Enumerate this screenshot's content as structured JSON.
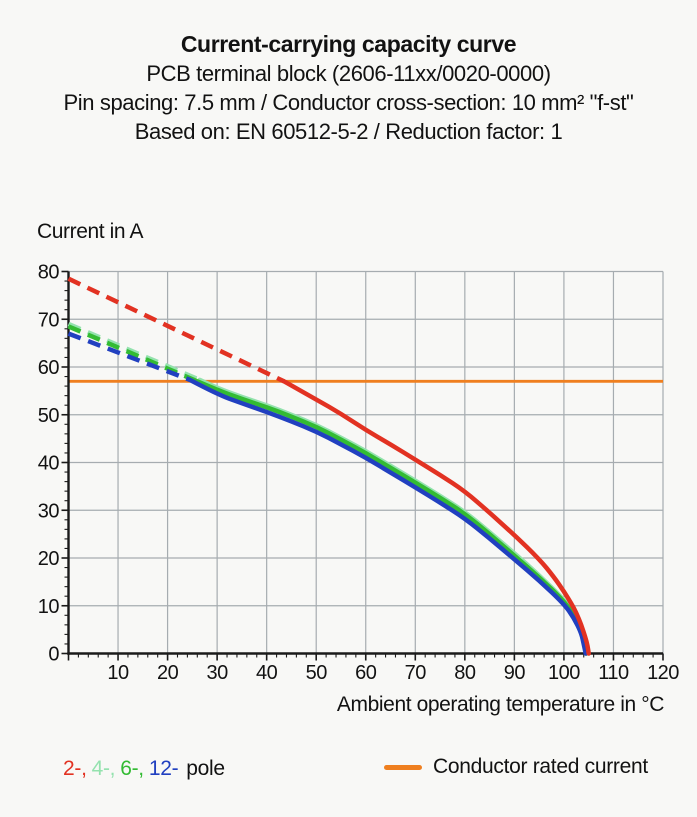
{
  "chart_data": {
    "type": "line",
    "title": "Current-carrying capacity curve",
    "subtitles": [
      "PCB terminal block (2606-11xx/0020-0000)",
      "Pin spacing: 7.5 mm / Conductor cross-section: 10 mm² \"f-st\"",
      "Based on: EN 60512-5-2 / Reduction factor: 1"
    ],
    "ylabel": "Current in A",
    "xlabel": "Ambient operating temperature in °C",
    "xlim": [
      0,
      120
    ],
    "ylim": [
      0,
      80
    ],
    "xticks": [
      10,
      20,
      30,
      40,
      50,
      60,
      70,
      80,
      90,
      100,
      110,
      120
    ],
    "yticks": [
      0,
      10,
      20,
      30,
      40,
      50,
      60,
      70,
      80
    ],
    "minor_tick_step": 2,
    "grid": true,
    "legend_position": "bottom",
    "rated_current_A": 57,
    "colors": {
      "grid": "#a6acb0",
      "axis": "#1a1a1a",
      "text": "#111111",
      "rated": "#ef7f1f"
    },
    "series": [
      {
        "name": "2-pole",
        "color": "#e23222",
        "dashed": [
          [
            0,
            78.5
          ],
          [
            43.5,
            57
          ]
        ],
        "solid": [
          [
            43.5,
            57
          ],
          [
            50,
            53.2
          ],
          [
            55,
            50.2
          ],
          [
            60,
            46.8
          ],
          [
            65,
            43.8
          ],
          [
            70,
            40.6
          ],
          [
            75,
            37.4
          ],
          [
            80,
            34
          ],
          [
            85,
            29.5
          ],
          [
            90,
            24.8
          ],
          [
            95,
            19.8
          ],
          [
            98,
            16
          ],
          [
            100,
            13
          ],
          [
            101.5,
            10.5
          ],
          [
            102.5,
            8.5
          ],
          [
            103.5,
            6
          ],
          [
            104.3,
            3.5
          ],
          [
            104.8,
            1.5
          ],
          [
            105,
            0
          ]
        ]
      },
      {
        "name": "4-pole",
        "color": "#94e2ae",
        "dashed": [
          [
            0,
            69
          ],
          [
            26.5,
            57.3
          ]
        ],
        "solid": [
          [
            26.5,
            57.3
          ],
          [
            30,
            55.6
          ],
          [
            35,
            53.7
          ],
          [
            40,
            52
          ],
          [
            45,
            50
          ],
          [
            50,
            47.9
          ],
          [
            55,
            45.2
          ],
          [
            60,
            42.4
          ],
          [
            65,
            39.3
          ],
          [
            70,
            36.2
          ],
          [
            75,
            33
          ],
          [
            80,
            29.7
          ],
          [
            85,
            25.4
          ],
          [
            90,
            21
          ],
          [
            95,
            16.4
          ],
          [
            100,
            11.3
          ],
          [
            102,
            8.3
          ],
          [
            103.5,
            5
          ],
          [
            104.2,
            2.5
          ],
          [
            104.6,
            0
          ]
        ]
      },
      {
        "name": "6-pole",
        "color": "#33bb33",
        "dashed": [
          [
            0,
            68.5
          ],
          [
            26,
            57
          ]
        ],
        "solid": [
          [
            26,
            57
          ],
          [
            30,
            55.2
          ],
          [
            35,
            53.3
          ],
          [
            40,
            51.6
          ],
          [
            45,
            49.6
          ],
          [
            50,
            47.5
          ],
          [
            55,
            44.8
          ],
          [
            60,
            42
          ],
          [
            65,
            38.9
          ],
          [
            70,
            35.8
          ],
          [
            75,
            32.6
          ],
          [
            80,
            29.3
          ],
          [
            85,
            25
          ],
          [
            90,
            20.5
          ],
          [
            95,
            16
          ],
          [
            100,
            11
          ],
          [
            102,
            8
          ],
          [
            103.5,
            4.7
          ],
          [
            104.1,
            2.3
          ],
          [
            104.5,
            0
          ]
        ]
      },
      {
        "name": "12-pole",
        "color": "#2140c0",
        "dashed": [
          [
            0,
            67
          ],
          [
            24.5,
            57.3
          ]
        ],
        "solid": [
          [
            24.5,
            57.3
          ],
          [
            30,
            54.3
          ],
          [
            35,
            52.4
          ],
          [
            40,
            50.6
          ],
          [
            45,
            48.6
          ],
          [
            50,
            46.5
          ],
          [
            55,
            43.8
          ],
          [
            60,
            41
          ],
          [
            65,
            37.9
          ],
          [
            70,
            34.8
          ],
          [
            75,
            31.6
          ],
          [
            80,
            28.3
          ],
          [
            85,
            24.1
          ],
          [
            90,
            19.7
          ],
          [
            95,
            15.3
          ],
          [
            100,
            10.4
          ],
          [
            102,
            7.5
          ],
          [
            103.5,
            4.3
          ],
          [
            104,
            2
          ],
          [
            104.4,
            0
          ]
        ]
      }
    ],
    "legend": {
      "pole_items": [
        {
          "label": "2-,",
          "color": "#e23222"
        },
        {
          "label": "4-,",
          "color": "#94e2ae"
        },
        {
          "label": "6-,",
          "color": "#33bb33"
        },
        {
          "label": "12-",
          "color": "#2140c0"
        }
      ],
      "pole_suffix": "pole",
      "rated_label": "Conductor rated current"
    }
  }
}
